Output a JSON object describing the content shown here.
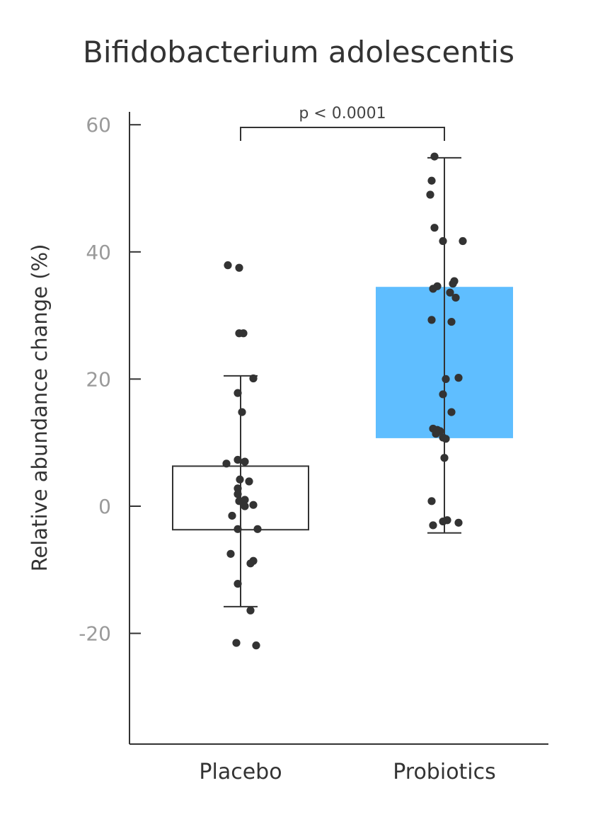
{
  "chart_data": {
    "type": "box",
    "title": "Bifidobacterium adolescentis",
    "ylabel": "Relative abundance change (%)",
    "xlabel": "",
    "ylim": [
      -37.5,
      62
    ],
    "yticks": [
      60,
      40,
      20,
      0,
      -20
    ],
    "ytick_labels": [
      "60",
      "40",
      "20",
      "0",
      "-20"
    ],
    "categories": [
      "Placebo",
      "Probiotics"
    ],
    "significance": {
      "text": "p < 0.0001",
      "between": [
        "Placebo",
        "Probiotics"
      ]
    },
    "series": [
      {
        "category": "Placebo",
        "fill": "#ffffff",
        "box": {
          "q1": -3.7,
          "q3": 6.3
        },
        "whiskers": {
          "low": -15.8,
          "high": 20.5
        },
        "points": [
          37.9,
          37.5,
          27.2,
          27.2,
          20.1,
          17.8,
          14.8,
          7.3,
          7.0,
          6.7,
          4.2,
          3.9,
          2.8,
          1.9,
          0.8,
          1.0,
          0.2,
          0.0,
          -1.5,
          -3.6,
          -3.6,
          -7.5,
          -8.6,
          -9.0,
          -12.2,
          -16.4,
          -21.5,
          -21.9
        ]
      },
      {
        "category": "Probiotics",
        "fill": "#5fbeff",
        "box": {
          "q1": 10.7,
          "q3": 34.5
        },
        "whiskers": {
          "low": -4.2,
          "high": 54.8
        },
        "points": [
          55.0,
          51.2,
          49.0,
          43.8,
          41.7,
          41.7,
          35.4,
          35.0,
          34.6,
          34.2,
          33.6,
          32.8,
          29.3,
          29.0,
          20.2,
          20.0,
          17.6,
          14.8,
          12.2,
          12.0,
          11.8,
          11.4,
          10.8,
          10.6,
          7.6,
          0.8,
          -2.2,
          -2.4,
          -2.6,
          -3.0
        ]
      }
    ]
  }
}
